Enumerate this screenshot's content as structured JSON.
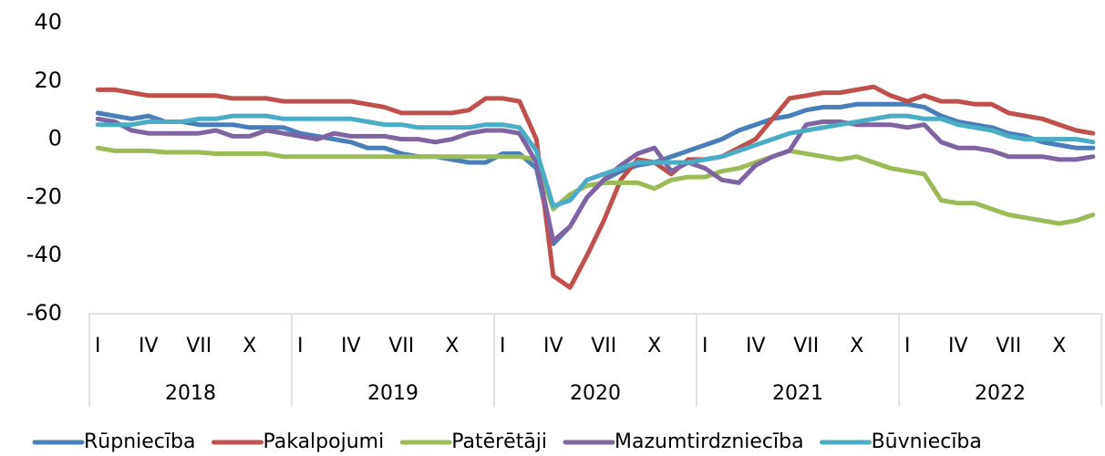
{
  "chart_data": {
    "type": "line",
    "categories": [
      "I",
      null,
      null,
      "IV",
      null,
      null,
      "VII",
      null,
      null,
      "X",
      null,
      null,
      "I",
      null,
      null,
      "IV",
      null,
      null,
      "VII",
      null,
      null,
      "X",
      null,
      null,
      "I",
      null,
      null,
      "IV",
      null,
      null,
      "VII",
      null,
      null,
      "X",
      null,
      null,
      "I",
      null,
      null,
      "IV",
      null,
      null,
      "VII",
      null,
      null,
      "X",
      null,
      null,
      "I",
      null,
      null,
      "IV",
      null,
      null,
      "VII",
      null,
      null,
      "X",
      null,
      null
    ],
    "category_groups": [
      "2018",
      "2019",
      "2020",
      "2021",
      "2022"
    ],
    "ylim": [
      -60,
      40
    ],
    "yticks": [
      -60,
      -40,
      -20,
      0,
      20,
      40
    ],
    "grid": false,
    "legend": "bottom",
    "series": [
      {
        "name": "Rūpniecība",
        "color": "#4a7ebb",
        "values": [
          9,
          8,
          7,
          8,
          6,
          6,
          5,
          5,
          5,
          4,
          4,
          4,
          2,
          1,
          0,
          -1,
          -3,
          -3,
          -5,
          -6,
          -6,
          -7,
          -8,
          -8,
          -5,
          -5,
          -10,
          -36,
          -30,
          -20,
          -14,
          -11,
          -9,
          -8,
          -6,
          -4,
          -2,
          0,
          3,
          5,
          7,
          8,
          10,
          11,
          11,
          12,
          12,
          12,
          12,
          11,
          8,
          6,
          5,
          4,
          2,
          1,
          -1,
          -2,
          -3,
          -3
        ]
      },
      {
        "name": "Pakalpojumi",
        "color": "#c0504d",
        "values": [
          17,
          17,
          16,
          15,
          15,
          15,
          15,
          15,
          14,
          14,
          14,
          13,
          13,
          13,
          13,
          13,
          12,
          11,
          9,
          9,
          9,
          9,
          10,
          14,
          14,
          13,
          0,
          -47,
          -51,
          -40,
          -28,
          -14,
          -7,
          -8,
          -12,
          -7,
          -7,
          -6,
          -3,
          0,
          7,
          14,
          15,
          16,
          16,
          17,
          18,
          15,
          13,
          15,
          13,
          13,
          12,
          12,
          9,
          8,
          7,
          5,
          3,
          2
        ]
      },
      {
        "name": "Patērētāji",
        "color": "#9bbb59",
        "values": [
          -3,
          -4,
          -4,
          -4,
          -4.5,
          -4.5,
          -4.5,
          -5,
          -5,
          -5,
          -5,
          -6,
          -6,
          -6,
          -6,
          -6,
          -6,
          -6,
          -6,
          -6,
          -6,
          -6,
          -6,
          -6,
          -6,
          -6,
          -7,
          -24,
          -19,
          -16,
          -15,
          -15,
          -15,
          -17,
          -14,
          -13,
          -13,
          -11,
          -10,
          -8,
          -6,
          -4,
          -5,
          -6,
          -7,
          -6,
          -8,
          -10,
          -11,
          -12,
          -21,
          -22,
          -22,
          -24,
          -26,
          -27,
          -28,
          -29,
          -28,
          -26
        ]
      },
      {
        "name": "Mazumtirdzniecība",
        "color": "#8064a2",
        "values": [
          7,
          6,
          3,
          2,
          2,
          2,
          2,
          3,
          1,
          1,
          3,
          2,
          1,
          0,
          2,
          1,
          1,
          1,
          0,
          0,
          -1,
          0,
          2,
          3,
          3,
          2,
          -8,
          -35,
          -30,
          -20,
          -14,
          -9,
          -5,
          -3,
          -11,
          -8,
          -10,
          -14,
          -15,
          -9,
          -6,
          -4,
          5,
          6,
          6,
          5,
          5,
          5,
          4,
          5,
          -1,
          -3,
          -3,
          -4,
          -6,
          -6,
          -6,
          -7,
          -7,
          -6
        ]
      },
      {
        "name": "Būvniecība",
        "color": "#4bacc6",
        "values": [
          5,
          5,
          5,
          6,
          6,
          6,
          7,
          7,
          8,
          8,
          8,
          7,
          7,
          7,
          7,
          7,
          6,
          5,
          5,
          4,
          4,
          4,
          4,
          5,
          5,
          4,
          -4,
          -23,
          -21,
          -14,
          -12,
          -10,
          -8,
          -8,
          -8,
          -8,
          -7,
          -6,
          -4,
          -2,
          0,
          2,
          3,
          4,
          5,
          6,
          7,
          8,
          8,
          7,
          7,
          5,
          4,
          3,
          1,
          0,
          0,
          0,
          0,
          -1
        ]
      }
    ]
  }
}
